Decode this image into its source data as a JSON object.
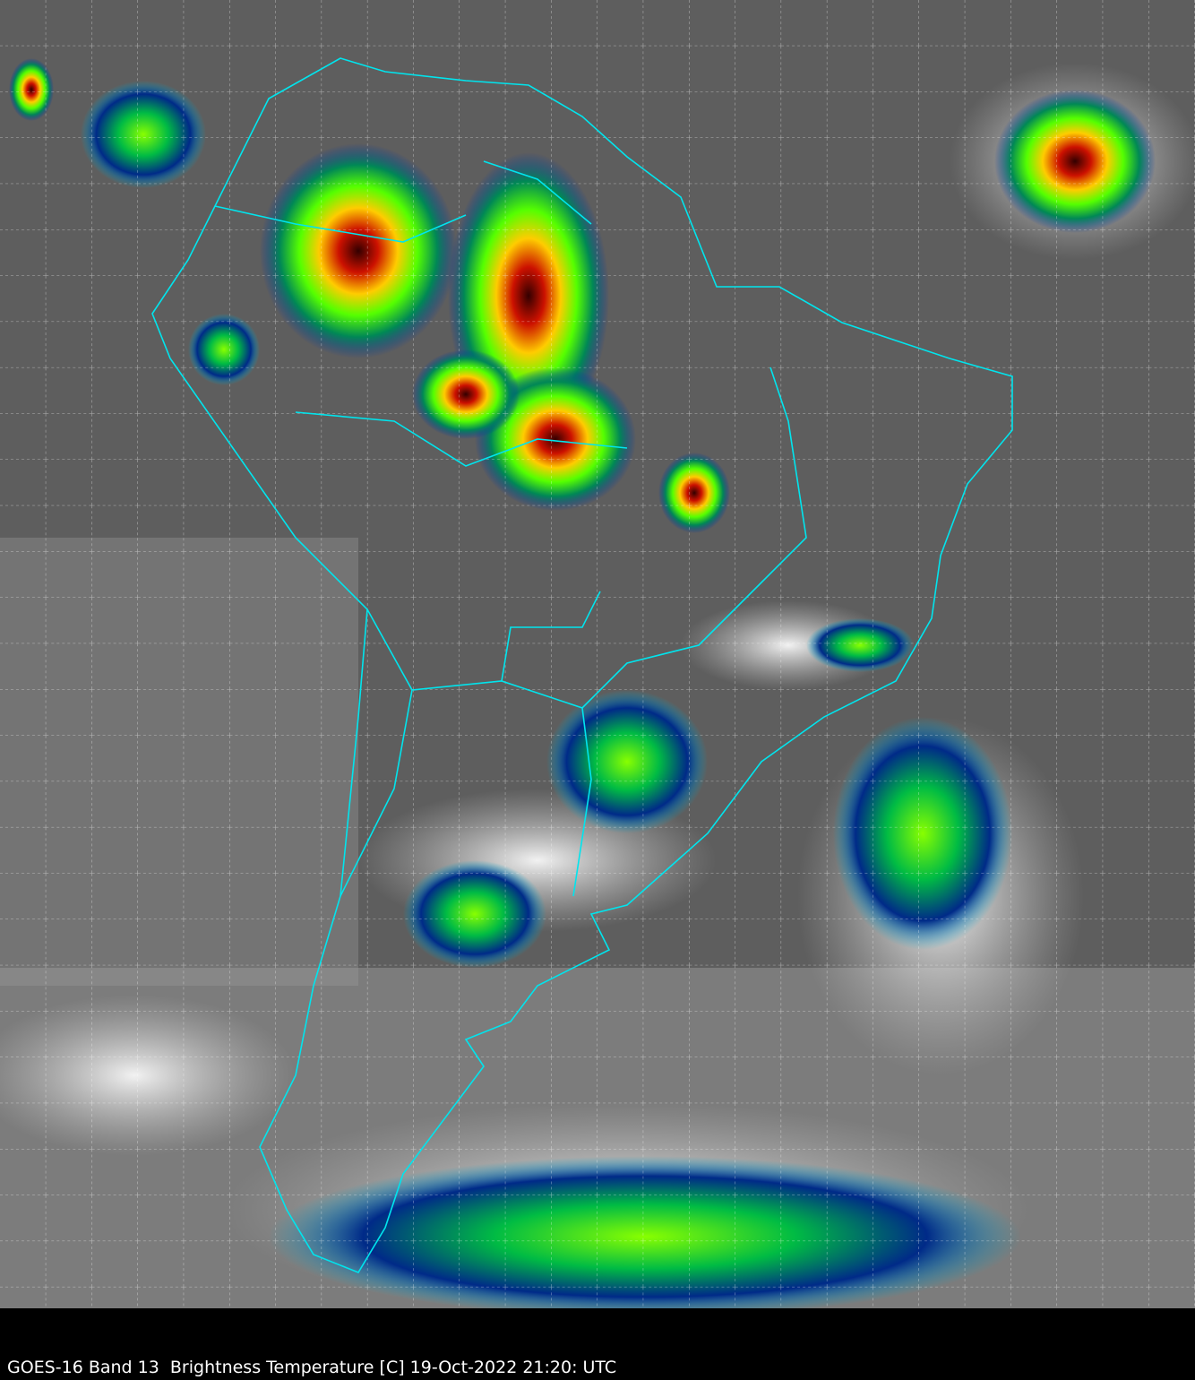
{
  "caption": "GOES-16 Band 13  Brightness Temperature [C] 19-Oct-2022 21:20: UTC",
  "map": {
    "type": "satellite infrared image",
    "region": "South America",
    "gridlines": true,
    "colors": {
      "background_cold_clouds": "#ffffff",
      "background_warm": "#5a5a5a",
      "borders": "#00e5ee",
      "grid": "#ffffff",
      "deep_convection": [
        "#0033aa",
        "#00aa55",
        "#66ff00",
        "#ffee00",
        "#ff4400",
        "#990000",
        "#222222"
      ]
    }
  }
}
